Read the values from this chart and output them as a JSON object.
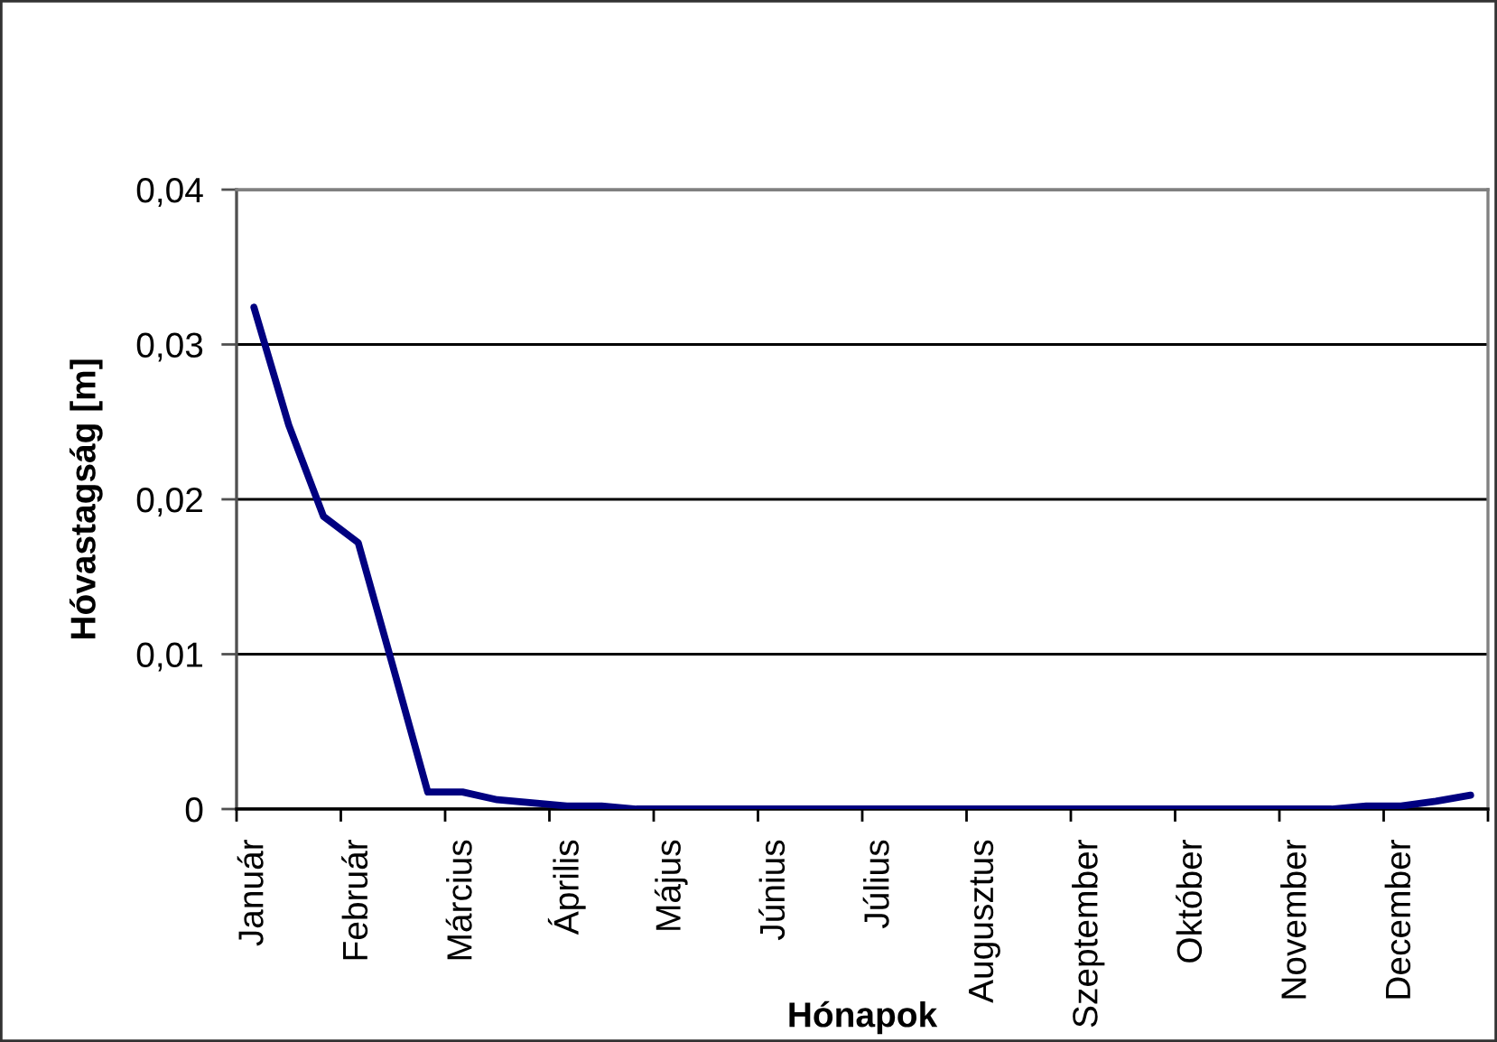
{
  "chart_data": {
    "type": "line",
    "xlabel": "Hónapok",
    "ylabel": "Hóvastagság [m]",
    "categories": [
      "Január",
      null,
      null,
      "Február",
      null,
      null,
      "Március",
      null,
      null,
      "Április",
      null,
      null,
      "Május",
      null,
      null,
      "Június",
      null,
      null,
      "Július",
      null,
      null,
      "Augusztus",
      null,
      null,
      "Szeptember",
      null,
      null,
      "Október",
      null,
      null,
      "November",
      null,
      null,
      "December",
      null,
      null
    ],
    "series": [
      {
        "color": "#000080",
        "values": [
          0.0324,
          0.0248,
          0.0189,
          0.0172,
          0.0092,
          0.0011,
          0.0011,
          0.0006,
          0.0004,
          0.0002,
          0.0002,
          0,
          0,
          0,
          0,
          0,
          0,
          0,
          0,
          0,
          0,
          0,
          0,
          0,
          0,
          0,
          0,
          0,
          0,
          0,
          0,
          0,
          0.0002,
          0.0002,
          0.0005,
          0.0009
        ]
      }
    ],
    "ylim": [
      0,
      0.04
    ],
    "yticks": [
      0,
      {
        "value": 0.01,
        "label": "0,01"
      },
      {
        "value": 0.02,
        "label": "0,02"
      },
      {
        "value": 0.03,
        "label": "0,03"
      },
      {
        "value": 0.04,
        "label": "0,04"
      }
    ],
    "grid": "y"
  }
}
